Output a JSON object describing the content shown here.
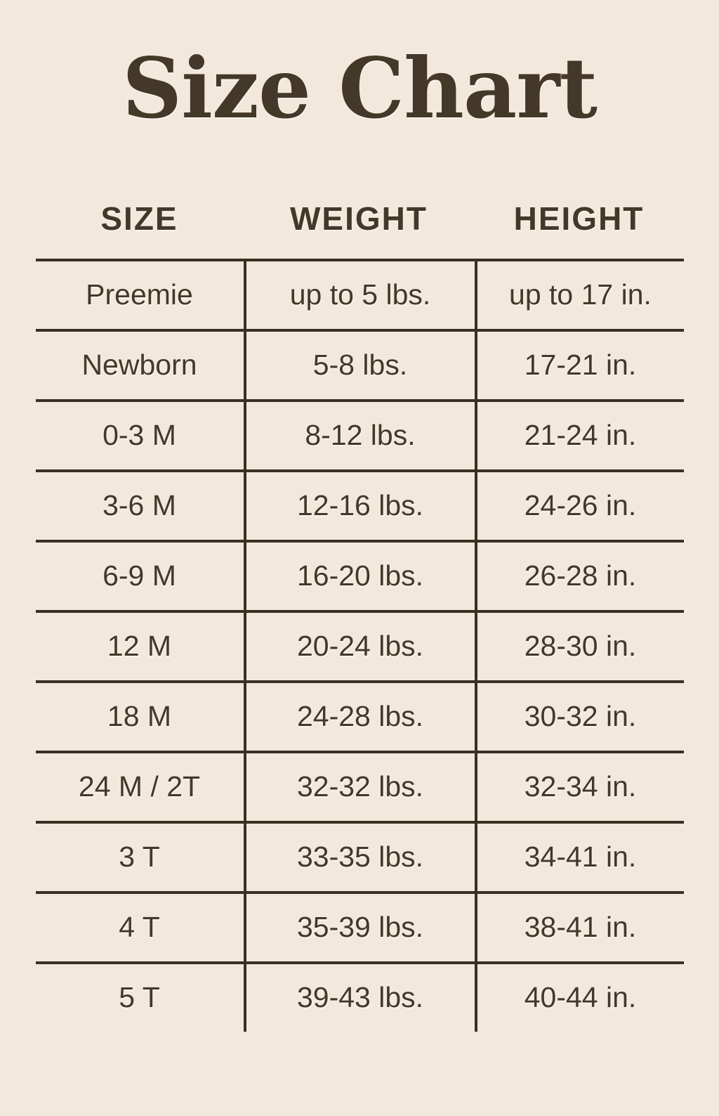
{
  "page_title": "Size Chart",
  "colors": {
    "background": "#f2e9dc",
    "text": "#443828",
    "line": "#3a2f21"
  },
  "chart_data": {
    "type": "table",
    "title": "Size Chart",
    "columns": [
      "SIZE",
      "WEIGHT",
      "HEIGHT"
    ],
    "rows": [
      [
        "Preemie",
        "up to 5 lbs.",
        "up to 17 in."
      ],
      [
        "Newborn",
        "5-8 lbs.",
        "17-21 in."
      ],
      [
        "0-3 M",
        "8-12 lbs.",
        "21-24 in."
      ],
      [
        "3-6 M",
        "12-16 lbs.",
        "24-26 in."
      ],
      [
        "6-9 M",
        "16-20 lbs.",
        "26-28 in."
      ],
      [
        "12 M",
        "20-24 lbs.",
        "28-30 in."
      ],
      [
        "18 M",
        "24-28 lbs.",
        "30-32 in."
      ],
      [
        "24 M / 2T",
        "32-32 lbs.",
        "32-34 in."
      ],
      [
        "3 T",
        "33-35 lbs.",
        "34-41 in."
      ],
      [
        "4 T",
        "35-39 lbs.",
        "38-41 in."
      ],
      [
        "5 T",
        "39-43 lbs.",
        "40-44 in."
      ]
    ]
  }
}
